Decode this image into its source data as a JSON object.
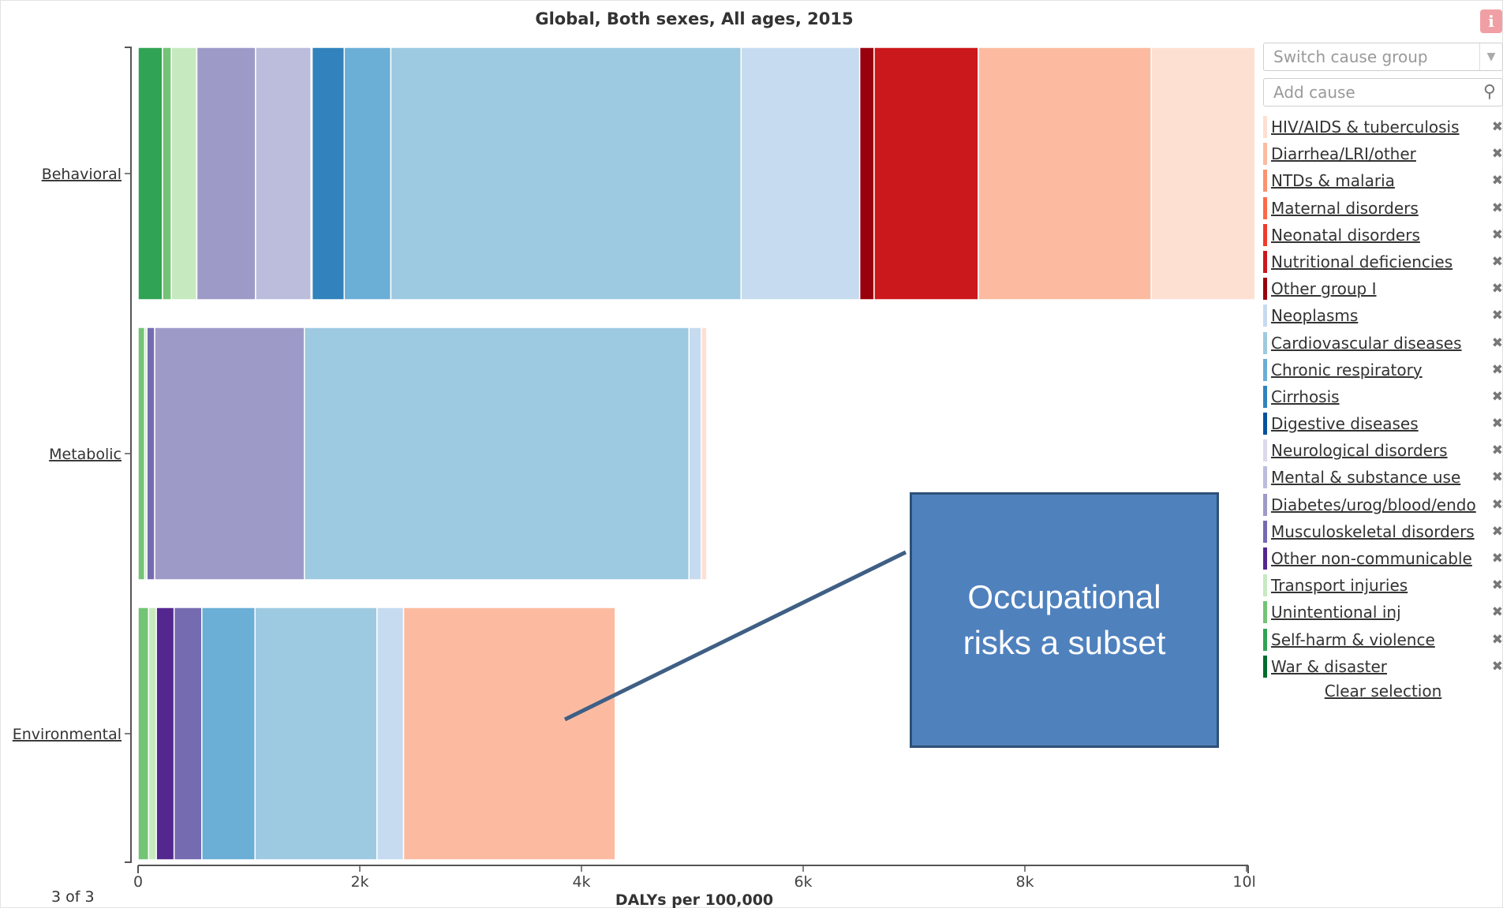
{
  "header": {
    "title": "Global, Both sexes, All ages, 2015",
    "info_icon": "i"
  },
  "pager": {
    "text": "3 of 3"
  },
  "callout": {
    "text": "Occupational risks a subset"
  },
  "controls": {
    "switch_cause_placeholder": "Switch cause group",
    "add_cause_placeholder": "Add cause",
    "search_icon": "magnifier",
    "clear_selection_label": "Clear selection",
    "remove_icon": "✖"
  },
  "legend": [
    {
      "label": "HIV/AIDS & tuberculosis",
      "color": "#fde0d2"
    },
    {
      "label": "Diarrhea/LRI/other",
      "color": "#fcbba1"
    },
    {
      "label": "NTDs & malaria",
      "color": "#fc9272"
    },
    {
      "label": "Maternal disorders",
      "color": "#fb6a4a"
    },
    {
      "label": "Neonatal disorders",
      "color": "#ef3b2c"
    },
    {
      "label": "Nutritional deficiencies",
      "color": "#cb181d"
    },
    {
      "label": "Other group I",
      "color": "#99000d"
    },
    {
      "label": "Neoplasms",
      "color": "#c6dbef"
    },
    {
      "label": "Cardiovascular diseases",
      "color": "#9ecae1"
    },
    {
      "label": "Chronic respiratory",
      "color": "#6baed6"
    },
    {
      "label": "Cirrhosis",
      "color": "#3182bd"
    },
    {
      "label": "Digestive diseases",
      "color": "#08519c"
    },
    {
      "label": "Neurological disorders",
      "color": "#dadaeb"
    },
    {
      "label": "Mental & substance use",
      "color": "#bcbddc"
    },
    {
      "label": "Diabetes/urog/blood/endo",
      "color": "#9e9ac8"
    },
    {
      "label": "Musculoskeletal disorders",
      "color": "#756bb1"
    },
    {
      "label": "Other non-communicable",
      "color": "#54278f"
    },
    {
      "label": "Transport injuries",
      "color": "#c7e9c0"
    },
    {
      "label": "Unintentional inj",
      "color": "#74c476"
    },
    {
      "label": "Self-harm & violence",
      "color": "#31a354"
    },
    {
      "label": "War & disaster",
      "color": "#006d2c"
    }
  ],
  "chart_data": {
    "type": "bar",
    "orientation": "horizontal",
    "stacked": true,
    "title": "Global, Both sexes, All ages, 2015",
    "xlabel": "DALYs per 100,000",
    "ylabel": "",
    "xlim": [
      0,
      10000
    ],
    "x_ticks": [
      "0",
      "2k",
      "4k",
      "6k",
      "8k",
      "10k"
    ],
    "categories": [
      "Behavioral",
      "Metabolic",
      "Environmental"
    ],
    "series": [
      {
        "name": "War & disaster",
        "color": "#006d2c",
        "values": [
          0,
          0,
          0
        ]
      },
      {
        "name": "Self-harm & violence",
        "color": "#31a354",
        "values": [
          220,
          0,
          0
        ]
      },
      {
        "name": "Unintentional inj",
        "color": "#74c476",
        "values": [
          80,
          60,
          95
        ]
      },
      {
        "name": "Transport injuries",
        "color": "#c7e9c0",
        "values": [
          230,
          20,
          70
        ]
      },
      {
        "name": "Other non-communicable",
        "color": "#54278f",
        "values": [
          0,
          0,
          160
        ]
      },
      {
        "name": "Musculoskeletal disorders",
        "color": "#756bb1",
        "values": [
          0,
          70,
          250
        ]
      },
      {
        "name": "Diabetes/urog/blood/endo",
        "color": "#9e9ac8",
        "values": [
          530,
          1350,
          0
        ]
      },
      {
        "name": "Mental & substance use",
        "color": "#bcbddc",
        "values": [
          500,
          0,
          0
        ]
      },
      {
        "name": "Neurological disorders",
        "color": "#dadaeb",
        "values": [
          10,
          0,
          0
        ]
      },
      {
        "name": "Digestive diseases",
        "color": "#08519c",
        "values": [
          0,
          0,
          0
        ]
      },
      {
        "name": "Cirrhosis",
        "color": "#3182bd",
        "values": [
          290,
          0,
          0
        ]
      },
      {
        "name": "Chronic respiratory",
        "color": "#6baed6",
        "values": [
          420,
          0,
          480
        ]
      },
      {
        "name": "Cardiovascular diseases",
        "color": "#9ecae1",
        "values": [
          3160,
          3470,
          1100
        ]
      },
      {
        "name": "Neoplasms",
        "color": "#c6dbef",
        "values": [
          1070,
          110,
          240
        ]
      },
      {
        "name": "Other group I",
        "color": "#99000d",
        "values": [
          130,
          0,
          0
        ]
      },
      {
        "name": "Nutritional deficiencies",
        "color": "#cb181d",
        "values": [
          940,
          0,
          0
        ]
      },
      {
        "name": "Neonatal disorders",
        "color": "#ef3b2c",
        "values": [
          0,
          0,
          0
        ]
      },
      {
        "name": "Maternal disorders",
        "color": "#fb6a4a",
        "values": [
          0,
          0,
          0
        ]
      },
      {
        "name": "NTDs & malaria",
        "color": "#fc9272",
        "values": [
          0,
          0,
          0
        ]
      },
      {
        "name": "Diarrhea/LRI/other",
        "color": "#fcbba1",
        "values": [
          1560,
          0,
          1910
        ]
      },
      {
        "name": "HIV/AIDS & tuberculosis",
        "color": "#fde0d2",
        "values": [
          940,
          50,
          0
        ]
      }
    ]
  }
}
